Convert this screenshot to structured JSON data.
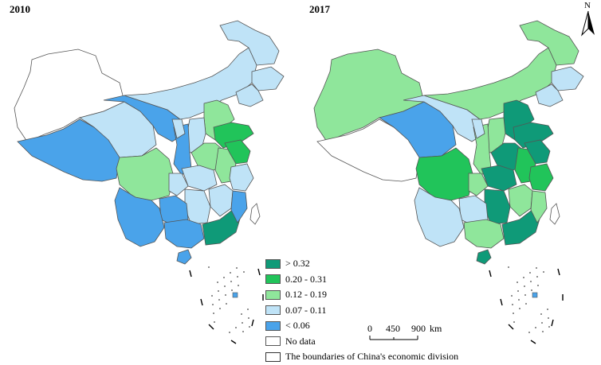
{
  "maps": [
    {
      "year": "2010",
      "regions": {
        "xinjiang": "nodata",
        "tibet": "c5",
        "qinghai": "c4",
        "gansu": "c5",
        "inner_mongolia": "c4",
        "heilongjiang": "c4",
        "jilin": "c4",
        "liaoning": "c4",
        "beijing_tianjin": "c2",
        "hebei": "c3",
        "shanxi": "c4",
        "shandong": "c2",
        "henan": "c3",
        "shaanxi": "c5",
        "ningxia": "c4",
        "sichuan": "c3",
        "chongqing": "c4",
        "hubei": "c4",
        "anhui": "c3",
        "jiangsu": "c2",
        "zhejiang": "c4",
        "jiangxi": "c4",
        "hunan": "c4",
        "guizhou": "c5",
        "yunnan": "c5",
        "guangxi": "c5",
        "guangdong": "c1",
        "fujian": "c5",
        "hainan": "c5",
        "taiwan": "nodata"
      }
    },
    {
      "year": "2017",
      "regions": {
        "xinjiang": "c3",
        "tibet": "nodata",
        "qinghai": "c5",
        "gansu": "c4",
        "inner_mongolia": "c3",
        "heilongjiang": "c3",
        "jilin": "c4",
        "liaoning": "c4",
        "beijing_tianjin": "c1",
        "hebei": "c1",
        "shanxi": "c3",
        "shandong": "c1",
        "henan": "c1",
        "shaanxi": "c3",
        "ningxia": "c4",
        "sichuan": "c2",
        "chongqing": "c3",
        "hubei": "c1",
        "anhui": "c2",
        "jiangsu": "c1",
        "zhejiang": "c2",
        "jiangxi": "c3",
        "hunan": "c1",
        "guizhou": "c4",
        "yunnan": "c4",
        "guangxi": "c3",
        "guangdong": "c1",
        "fujian": "c3",
        "hainan": "c1",
        "taiwan": "nodata"
      }
    }
  ],
  "legend": {
    "items": [
      {
        "key": "c1",
        "label": "> 0.32",
        "color": "#0f9a78"
      },
      {
        "key": "c2",
        "label": "0.20 - 0.31",
        "color": "#21c45a"
      },
      {
        "key": "c3",
        "label": "0.12 - 0.19",
        "color": "#8fe69b"
      },
      {
        "key": "c4",
        "label": "0.07 - 0.11",
        "color": "#bfe3f7"
      },
      {
        "key": "c5",
        "label": "< 0.06",
        "color": "#4aa3ea"
      },
      {
        "key": "nodata",
        "label": "No data",
        "color": "#ffffff"
      }
    ],
    "boundary_label": "The boundaries of China's economic division"
  },
  "scale_bar": {
    "ticks": [
      "0",
      "450",
      "900"
    ],
    "unit": "km"
  },
  "north_arrow": {
    "letter": "N",
    "icon": "north-arrow-icon"
  }
}
